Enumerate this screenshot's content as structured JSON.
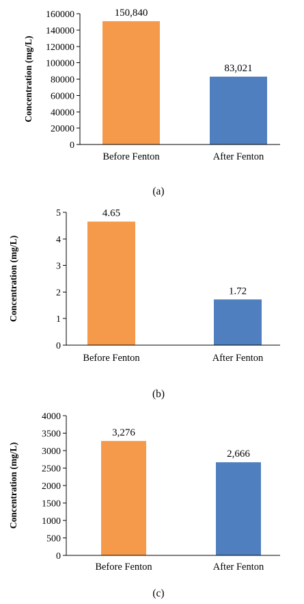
{
  "colors": {
    "before": "#f59a4a",
    "after": "#4f7fbe",
    "axis": "#000000"
  },
  "chart_data": [
    {
      "type": "bar",
      "caption": "(a)",
      "ylabel": "Concentration (mg/L)",
      "categories": [
        "Before Fenton",
        "After Fenton"
      ],
      "values": [
        150840,
        83021
      ],
      "data_labels": [
        "150,840",
        "83,021"
      ],
      "ylim": [
        0,
        160000
      ],
      "yticks": [
        0,
        20000,
        40000,
        60000,
        80000,
        100000,
        120000,
        140000,
        160000
      ],
      "ytick_labels": [
        "0",
        "20000",
        "40000",
        "60000",
        "80000",
        "100000",
        "120000",
        "140000",
        "160000"
      ],
      "grid": false
    },
    {
      "type": "bar",
      "caption": "(b)",
      "ylabel": "Concentration (mg/L)",
      "categories": [
        "Before Fenton",
        "After Fenton"
      ],
      "values": [
        4.65,
        1.72
      ],
      "data_labels": [
        "4.65",
        "1.72"
      ],
      "ylim": [
        0,
        5
      ],
      "yticks": [
        0,
        1,
        2,
        3,
        4,
        5
      ],
      "ytick_labels": [
        "0",
        "1",
        "2",
        "3",
        "4",
        "5"
      ],
      "grid": false
    },
    {
      "type": "bar",
      "caption": "(c)",
      "ylabel": "Concentration (mg/L)",
      "categories": [
        "Before Fenton",
        "After Fenton"
      ],
      "values": [
        3276,
        2666
      ],
      "data_labels": [
        "3,276",
        "2,666"
      ],
      "ylim": [
        0,
        4000
      ],
      "yticks": [
        0,
        500,
        1000,
        1500,
        2000,
        2500,
        3000,
        3500,
        4000
      ],
      "ytick_labels": [
        "0",
        "500",
        "1000",
        "1500",
        "2000",
        "2500",
        "3000",
        "3500",
        "4000"
      ],
      "grid": false
    }
  ]
}
